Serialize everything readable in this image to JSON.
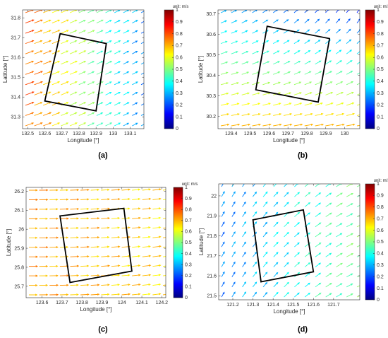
{
  "figure": {
    "colormap": [
      "#000080",
      "#0000ff",
      "#00ffff",
      "#ffff00",
      "#ff0000",
      "#800000"
    ]
  },
  "chart_data": [
    {
      "type": "quiver",
      "panel_label": "(a)",
      "xlabel": "Longitude [°]",
      "ylabel": "Latitude [°]",
      "xlim": [
        132.47,
        133.18
      ],
      "ylim": [
        31.24,
        31.84
      ],
      "xticks": [
        132.5,
        132.6,
        132.7,
        132.8,
        132.9,
        133,
        133.1
      ],
      "xticklabels": [
        "132.5",
        "132.6",
        "132.7",
        "132.8",
        "132.9",
        "133",
        "133.1"
      ],
      "yticks": [
        31.3,
        31.4,
        31.5,
        31.6,
        31.7,
        31.8
      ],
      "yticklabels": [
        "31.3",
        "31.4",
        "31.5",
        "31.6",
        "31.7",
        "31.8"
      ],
      "colorbar": {
        "label": "unit: m/s",
        "range": [
          0,
          1
        ],
        "ticks": [
          "0",
          "0.1",
          "0.2",
          "0.3",
          "0.4",
          "0.5",
          "0.6",
          "0.7",
          "0.8",
          "0.9",
          "1"
        ]
      },
      "grid": {
        "nx": 14,
        "ny": 12
      },
      "flow": {
        "angle_deg_start": 20,
        "angle_deg_end": 28,
        "speed_west": 0.78,
        "speed_east": 0.25
      },
      "box": [
        [
          132.69,
          31.72
        ],
        [
          132.96,
          31.67
        ],
        [
          132.9,
          31.33
        ],
        [
          132.6,
          31.38
        ]
      ]
    },
    {
      "type": "quiver",
      "panel_label": "(b)",
      "xlabel": "Longitude [°]",
      "ylabel": "Latitude [°]",
      "xlim": [
        129.33,
        130.08
      ],
      "ylim": [
        30.14,
        30.72
      ],
      "xticks": [
        129.4,
        129.5,
        129.6,
        129.7,
        129.8,
        129.9,
        130
      ],
      "xticklabels": [
        "129.4",
        "129.5",
        "129.6",
        "129.7",
        "129.8",
        "129.9",
        "130"
      ],
      "yticks": [
        30.2,
        30.3,
        30.4,
        30.5,
        30.6,
        30.7
      ],
      "yticklabels": [
        "30.2",
        "30.3",
        "30.4",
        "30.5",
        "30.6",
        "30.7"
      ],
      "colorbar": {
        "label": "unit: m/s",
        "range": [
          0,
          1
        ],
        "ticks": [
          "0",
          "0.1",
          "0.2",
          "0.3",
          "0.4",
          "0.5",
          "0.6",
          "0.7",
          "0.8",
          "0.9",
          "1"
        ]
      },
      "grid": {
        "nx": 14,
        "ny": 12
      },
      "flow": {
        "angle_deg_start": 10,
        "angle_deg_end": 55,
        "speed_south": 0.7,
        "speed_north": 0.3
      },
      "box": [
        [
          129.59,
          30.64
        ],
        [
          129.92,
          30.58
        ],
        [
          129.86,
          30.27
        ],
        [
          129.53,
          30.33
        ]
      ]
    },
    {
      "type": "quiver",
      "panel_label": "(c)",
      "xlabel": "Longitude [°]",
      "ylabel": "Latitude [°]",
      "xlim": [
        123.52,
        124.22
      ],
      "ylim": [
        25.64,
        26.22
      ],
      "xticks": [
        123.6,
        123.7,
        123.8,
        123.9,
        124,
        124.1,
        124.2
      ],
      "xticklabels": [
        "123.6",
        "123.7",
        "123.8",
        "123.9",
        "124",
        "124.1",
        "124.2"
      ],
      "yticks": [
        25.7,
        25.8,
        25.9,
        26,
        26.1,
        26.2
      ],
      "yticklabels": [
        "25.7",
        "25.8",
        "25.9",
        "26",
        "26.1",
        "26.2"
      ],
      "colorbar": {
        "label": "unit: m/s",
        "range": [
          0,
          1
        ],
        "ticks": [
          "0",
          "0.1",
          "0.2",
          "0.3",
          "0.4",
          "0.5",
          "0.6",
          "0.7",
          "0.8",
          "0.9",
          "1"
        ]
      },
      "grid": {
        "nx": 14,
        "ny": 12
      },
      "flow": {
        "angle_deg_start": 0,
        "angle_deg_end": 8,
        "speed_west": 0.72,
        "speed_east": 0.66
      },
      "box": [
        [
          123.69,
          26.07
        ],
        [
          124.01,
          26.11
        ],
        [
          124.05,
          25.78
        ],
        [
          123.74,
          25.72
        ]
      ]
    },
    {
      "type": "quiver",
      "panel_label": "(d)",
      "xlabel": "Longitude [°]",
      "ylabel": "Latitude [°]",
      "xlim": [
        121.13,
        121.83
      ],
      "ylim": [
        21.48,
        22.06
      ],
      "xticks": [
        121.2,
        121.3,
        121.4,
        121.5,
        121.6,
        121.7
      ],
      "xticklabels": [
        "121.2",
        "121.3",
        "121.4",
        "121.5",
        "121.6",
        "121.7"
      ],
      "yticks": [
        21.5,
        21.6,
        21.7,
        21.8,
        21.9,
        22
      ],
      "yticklabels": [
        "21.5",
        "21.6",
        "21.7",
        "21.8",
        "21.9",
        "22"
      ],
      "colorbar": {
        "label": "unit: m/s",
        "range": [
          0,
          1
        ],
        "ticks": [
          "0",
          "0.1",
          "0.2",
          "0.3",
          "0.4",
          "0.5",
          "0.6",
          "0.7",
          "0.8",
          "0.9",
          "1"
        ]
      },
      "grid": {
        "nx": 14,
        "ny": 12
      },
      "flow": {
        "angle_deg_start": 60,
        "angle_deg_end": 25,
        "speed_west": 0.25,
        "speed_east": 0.5
      },
      "box": [
        [
          121.3,
          21.88
        ],
        [
          121.55,
          21.93
        ],
        [
          121.6,
          21.62
        ],
        [
          121.34,
          21.57
        ]
      ]
    }
  ]
}
